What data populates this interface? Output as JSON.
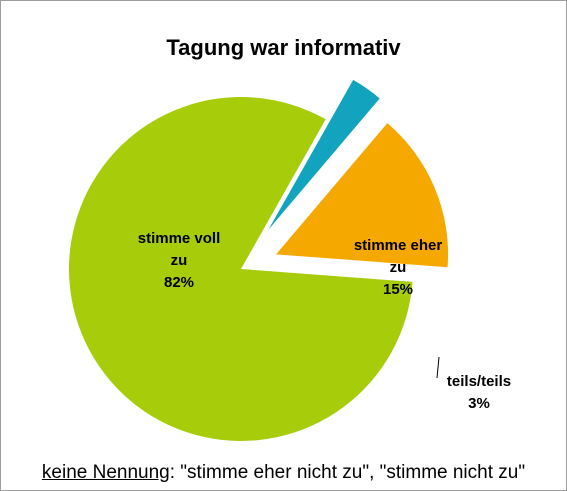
{
  "chart_data": {
    "type": "pie",
    "title": "Tagung war informativ",
    "slices": [
      {
        "label": [
          "stimme voll",
          "zu",
          "82%"
        ],
        "value": 82,
        "color": "#a6cc0a",
        "exploded": false
      },
      {
        "label": [
          "stimme eher",
          "zu",
          "15%"
        ],
        "value": 15,
        "color": "#f5a800",
        "exploded": true
      },
      {
        "label": [
          "teils/teils",
          "3%"
        ],
        "value": 3,
        "color": "#12a4bf",
        "exploded": true
      }
    ]
  },
  "footer": {
    "prefix": "keine Nennung",
    "text": ": \"stimme eher nicht zu\", \"stimme nicht zu\""
  }
}
